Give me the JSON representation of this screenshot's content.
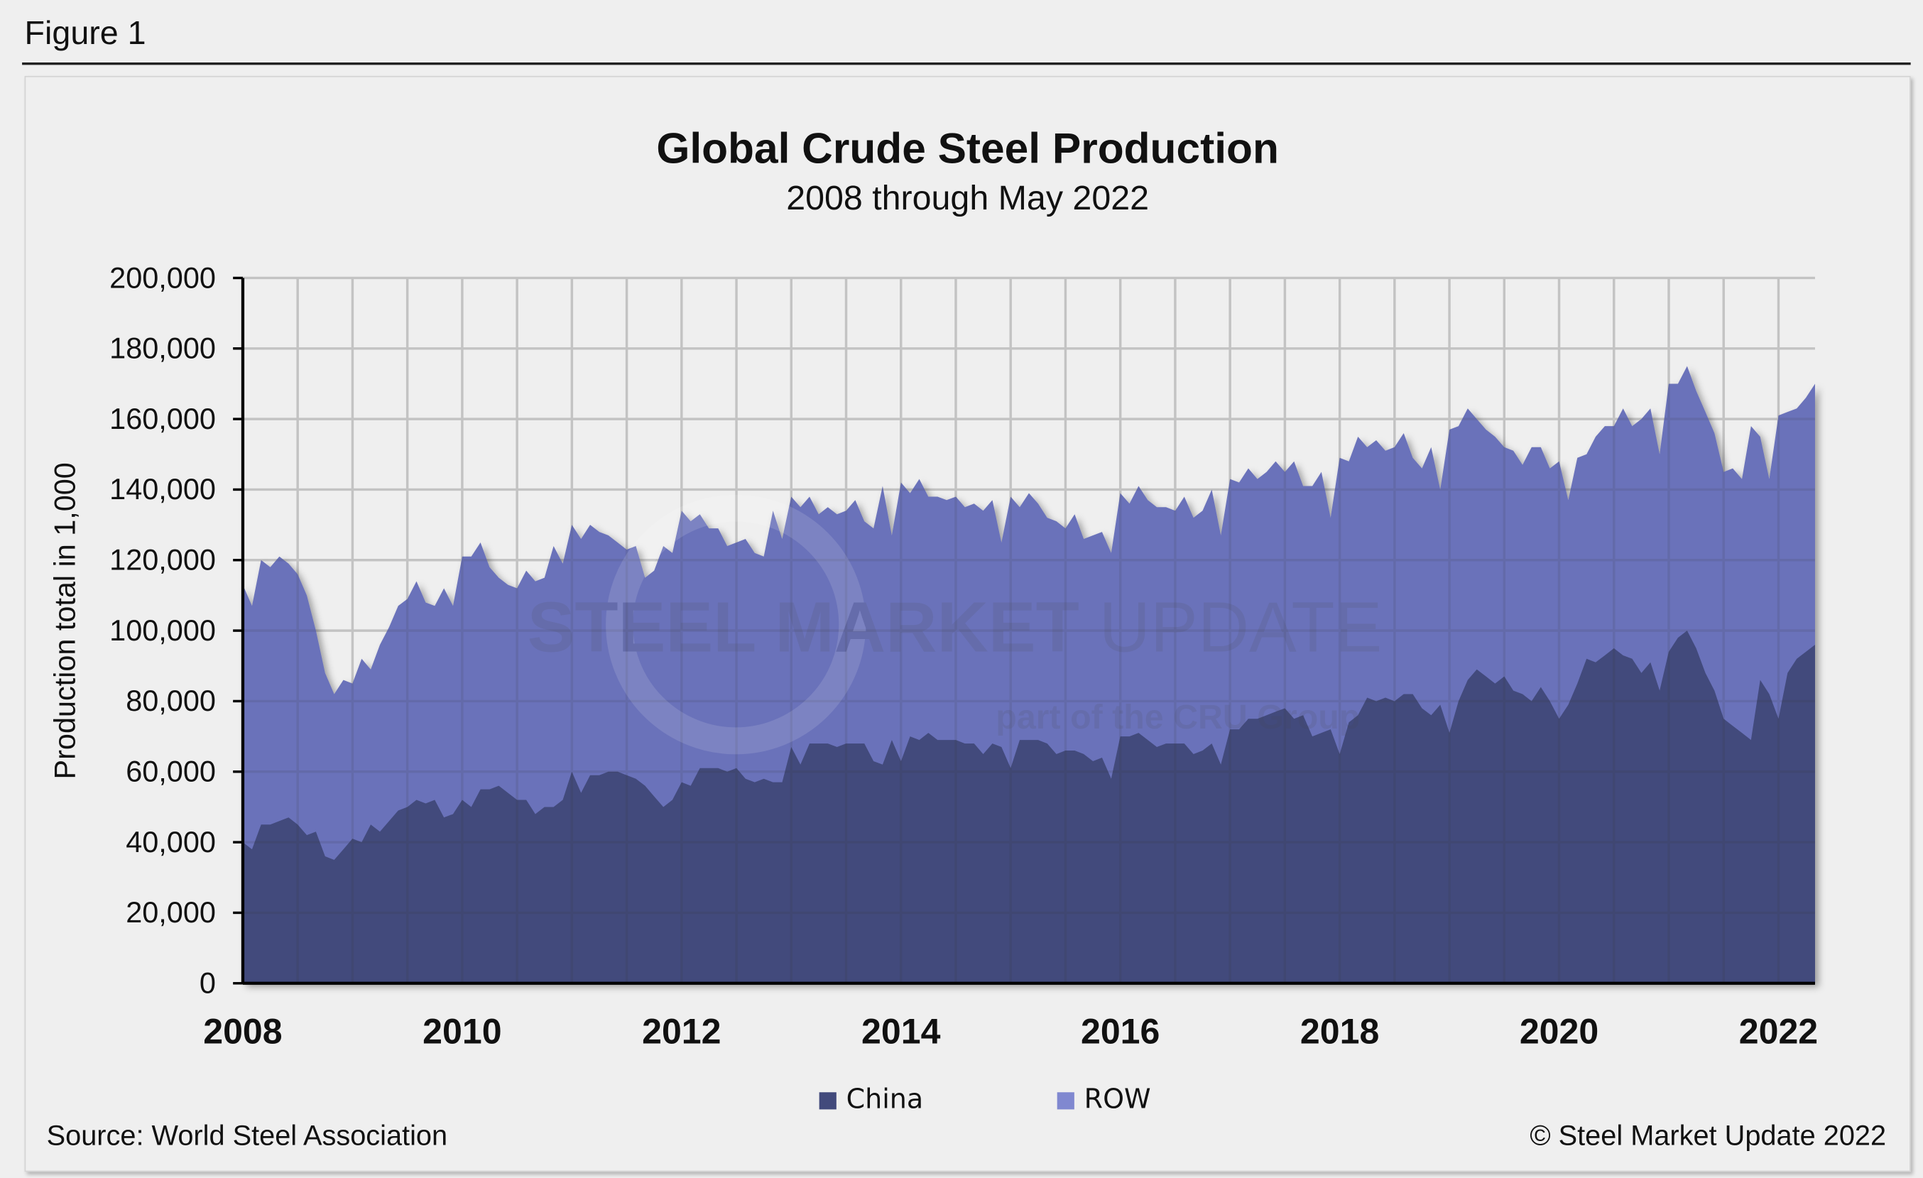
{
  "figure_label": "Figure 1",
  "source": "Source: World Steel Association",
  "copyright": "© Steel Market Update 2022",
  "watermark": {
    "line1": "STEEL MARKET UPDATE",
    "line2": "part of the CRU Group"
  },
  "colors": {
    "china": "#424a7c",
    "row": "#6b72ba",
    "row_legend": "#8088d0",
    "grid": "#d8d8d8"
  },
  "chart_data": {
    "type": "area",
    "stacked": true,
    "title": "Global Crude Steel Production",
    "subtitle": "2008 through May 2022",
    "xlabel": "",
    "ylabel": "Production total in 1,000",
    "ylim": [
      0,
      200000
    ],
    "yticks": [
      "0",
      "20,000",
      "40,000",
      "60,000",
      "80,000",
      "100,000",
      "120,000",
      "140,000",
      "160,000",
      "180,000",
      "200,000"
    ],
    "xticks": [
      "2008",
      "2010",
      "2012",
      "2014",
      "2016",
      "2018",
      "2020",
      "2022"
    ],
    "x_start": "2008-01",
    "x_end": "2022-05",
    "frequency": "monthly",
    "grid": true,
    "legend_position": "bottom",
    "series_note_units": "thousand tonnes",
    "china": [
      40,
      38,
      45,
      45,
      46,
      47,
      45,
      42,
      43,
      36,
      35,
      38,
      41,
      40,
      45,
      43,
      46,
      49,
      50,
      52,
      51,
      52,
      47,
      48,
      52,
      50,
      55,
      55,
      56,
      54,
      52,
      52,
      48,
      50,
      50,
      52,
      60,
      54,
      59,
      59,
      60,
      60,
      59,
      58,
      56,
      53,
      50,
      52,
      57,
      56,
      61,
      61,
      61,
      60,
      61,
      58,
      57,
      58,
      57,
      57,
      67,
      62,
      68,
      68,
      68,
      67,
      68,
      68,
      68,
      63,
      62,
      69,
      63,
      70,
      69,
      71,
      69,
      69,
      69,
      68,
      68,
      65,
      68,
      67,
      61,
      69,
      69,
      69,
      68,
      65,
      66,
      66,
      65,
      63,
      64,
      58,
      70,
      70,
      71,
      69,
      67,
      68,
      68,
      68,
      65,
      66,
      68,
      62,
      72,
      72,
      75,
      75,
      76,
      77,
      78,
      75,
      76,
      70,
      71,
      72,
      65,
      74,
      76,
      81,
      80,
      81,
      80,
      82,
      82,
      78,
      76,
      79,
      71,
      80,
      86,
      89,
      87,
      85,
      87,
      83,
      82,
      80,
      84,
      80,
      75,
      79,
      85,
      92,
      91,
      93,
      95,
      93,
      92,
      88,
      91,
      83,
      94,
      98,
      100,
      95,
      88,
      83,
      75,
      73,
      71,
      69,
      86,
      82,
      75,
      88,
      92,
      94,
      96
    ],
    "total": [
      113,
      107,
      120,
      118,
      121,
      119,
      116,
      110,
      100,
      88,
      82,
      86,
      85,
      92,
      89,
      96,
      101,
      107,
      109,
      114,
      108,
      107,
      112,
      107,
      121,
      121,
      125,
      118,
      115,
      113,
      112,
      117,
      114,
      115,
      124,
      119,
      130,
      126,
      130,
      128,
      127,
      125,
      123,
      124,
      115,
      117,
      124,
      122,
      134,
      131,
      133,
      129,
      129,
      124,
      125,
      126,
      122,
      121,
      134,
      126,
      138,
      135,
      138,
      133,
      135,
      133,
      134,
      137,
      131,
      129,
      141,
      127,
      142,
      139,
      143,
      138,
      138,
      137,
      138,
      135,
      136,
      134,
      137,
      125,
      138,
      135,
      139,
      136,
      132,
      131,
      129,
      133,
      126,
      127,
      128,
      122,
      139,
      136,
      141,
      137,
      135,
      135,
      134,
      138,
      132,
      134,
      140,
      127,
      143,
      142,
      146,
      143,
      145,
      148,
      145,
      148,
      141,
      141,
      145,
      132,
      149,
      148,
      155,
      152,
      154,
      151,
      152,
      156,
      149,
      146,
      152,
      140,
      157,
      158,
      163,
      160,
      157,
      155,
      152,
      151,
      147,
      152,
      152,
      146,
      148,
      137,
      149,
      150,
      155,
      158,
      158,
      163,
      158,
      160,
      163,
      150,
      170,
      170,
      175,
      168,
      162,
      156,
      145,
      146,
      143,
      158,
      155,
      143,
      161,
      162,
      163,
      166,
      170
    ],
    "series": [
      {
        "name": "China",
        "values_key": "china"
      },
      {
        "name": "ROW",
        "values_key": "total_minus_china"
      }
    ]
  }
}
